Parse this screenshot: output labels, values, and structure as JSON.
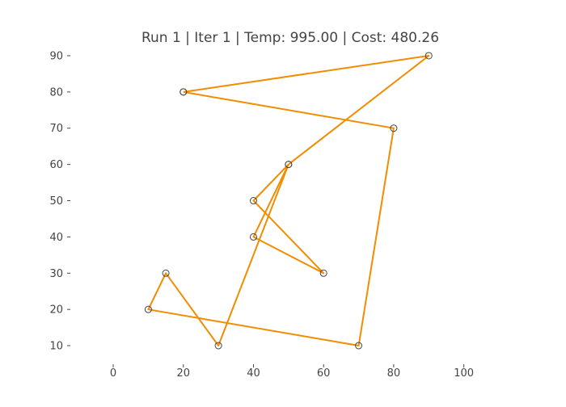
{
  "chart_data": {
    "type": "line",
    "title": "Run 1 | Iter 1 | Temp: 995.00 | Cost: 480.26",
    "xlabel": "",
    "ylabel": "",
    "xlim": [
      -12,
      113
    ],
    "ylim": [
      6,
      92
    ],
    "x_ticks": [
      0,
      20,
      40,
      60,
      80,
      100
    ],
    "y_ticks": [
      10,
      20,
      30,
      40,
      50,
      60,
      70,
      80,
      90
    ],
    "grid": false,
    "legend": "none",
    "line_color": "#f28c00",
    "marker_color": "#444444",
    "series": [
      {
        "x": [
          20,
          90,
          50,
          40,
          60,
          40,
          50,
          30,
          15,
          10,
          70,
          80,
          20
        ],
        "y": [
          80,
          90,
          60,
          50,
          30,
          40,
          60,
          10,
          30,
          20,
          10,
          70,
          80
        ]
      }
    ]
  }
}
